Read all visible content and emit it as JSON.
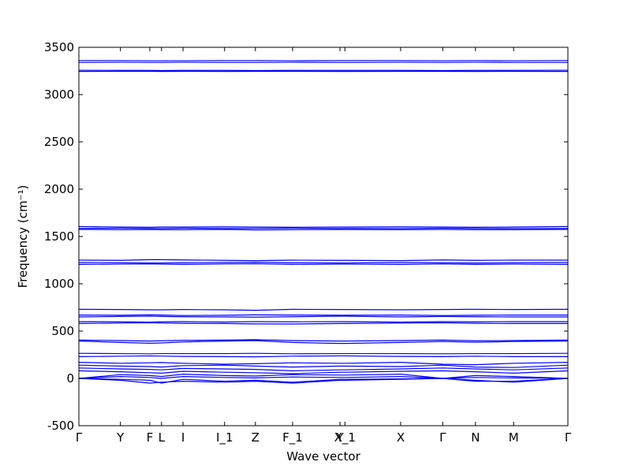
{
  "chart_data": {
    "type": "line",
    "xlabel": "Wave vector",
    "ylabel": "Frequency (cm⁻¹)",
    "xlim": [
      0,
      1
    ],
    "xticks": [
      {
        "value": 0,
        "label": "Γ"
      },
      {
        "value": 0.085,
        "label": "Y"
      },
      {
        "value": 0.145,
        "label": "F"
      },
      {
        "value": 0.169,
        "label": "L"
      },
      {
        "value": 0.213,
        "label": "I"
      },
      {
        "value": 0.298,
        "label": "I_1"
      },
      {
        "value": 0.361,
        "label": "Z"
      },
      {
        "value": 0.437,
        "label": "F_1"
      },
      {
        "value": 0.534,
        "label": "Y"
      },
      {
        "value": 0.544,
        "label": "X_1"
      },
      {
        "value": 0.658,
        "label": "X"
      },
      {
        "value": 0.744,
        "label": "Γ"
      },
      {
        "value": 0.811,
        "label": "N"
      },
      {
        "value": 0.889,
        "label": "M"
      },
      {
        "value": 1,
        "label": "Γ"
      }
    ],
    "ylim": [
      -500,
      3500
    ],
    "yticks": [
      -500,
      0,
      500,
      1000,
      1500,
      2000,
      2500,
      3000,
      3500
    ],
    "x": [
      0,
      0.085,
      0.145,
      0.169,
      0.213,
      0.298,
      0.361,
      0.437,
      0.534,
      0.544,
      0.658,
      0.744,
      0.811,
      0.889,
      1
    ],
    "series": [
      {
        "color": "#0000ff",
        "values": [
          3360,
          3360,
          3358,
          3358,
          3358,
          3360,
          3360,
          3358,
          3360,
          3360,
          3360,
          3358,
          3360,
          3358,
          3360
        ]
      },
      {
        "color": "#0000ff",
        "values": [
          3340,
          3342,
          3340,
          3340,
          3342,
          3340,
          3340,
          3342,
          3340,
          3340,
          3342,
          3340,
          3342,
          3340,
          3340
        ]
      },
      {
        "color": "#0000ff",
        "values": [
          3258,
          3256,
          3256,
          3254,
          3256,
          3256,
          3254,
          3256,
          3256,
          3256,
          3256,
          3254,
          3256,
          3256,
          3258
        ]
      },
      {
        "color": "#0000ff",
        "values": [
          3245,
          3246,
          3246,
          3245,
          3246,
          3245,
          3246,
          3246,
          3245,
          3245,
          3246,
          3246,
          3245,
          3246,
          3245
        ]
      },
      {
        "color": "#0000ff",
        "values": [
          1605,
          1600,
          1598,
          1600,
          1600,
          1602,
          1600,
          1598,
          1600,
          1600,
          1602,
          1600,
          1598,
          1600,
          1605
        ]
      },
      {
        "color": "#0000ff",
        "values": [
          1585,
          1588,
          1586,
          1585,
          1588,
          1585,
          1586,
          1588,
          1585,
          1586,
          1585,
          1588,
          1586,
          1585,
          1585
        ]
      },
      {
        "color": "#0000ff",
        "values": [
          1575,
          1572,
          1574,
          1572,
          1572,
          1575,
          1570,
          1572,
          1574,
          1574,
          1572,
          1575,
          1572,
          1572,
          1575
        ]
      },
      {
        "color": "#0000ff",
        "values": [
          1250,
          1248,
          1255,
          1255,
          1252,
          1248,
          1245,
          1250,
          1248,
          1248,
          1245,
          1252,
          1248,
          1250,
          1250
        ]
      },
      {
        "color": "#0000ff",
        "values": [
          1225,
          1222,
          1220,
          1220,
          1222,
          1225,
          1228,
          1222,
          1220,
          1220,
          1225,
          1222,
          1220,
          1222,
          1225
        ]
      },
      {
        "color": "#0000ff",
        "values": [
          1205,
          1208,
          1210,
          1208,
          1205,
          1210,
          1212,
          1205,
          1208,
          1208,
          1205,
          1210,
          1205,
          1208,
          1205
        ]
      },
      {
        "color": "#0000ff",
        "values": [
          730,
          728,
          725,
          725,
          728,
          725,
          720,
          730,
          728,
          728,
          725,
          728,
          730,
          728,
          730
        ]
      },
      {
        "color": "#0000ff",
        "values": [
          670,
          668,
          672,
          670,
          665,
          668,
          672,
          670,
          668,
          668,
          670,
          665,
          668,
          670,
          670
        ]
      },
      {
        "color": "#0000ff",
        "values": [
          650,
          655,
          658,
          655,
          652,
          650,
          648,
          652,
          658,
          658,
          650,
          655,
          652,
          650,
          650
        ]
      },
      {
        "color": "#0000ff",
        "values": [
          600,
          598,
          595,
          598,
          600,
          596,
          600,
          598,
          600,
          600,
          595,
          600,
          598,
          600,
          600
        ]
      },
      {
        "color": "#0000ff",
        "values": [
          580,
          585,
          588,
          585,
          582,
          580,
          576,
          575,
          580,
          580,
          585,
          588,
          582,
          580,
          580
        ]
      },
      {
        "color": "#0000ff",
        "values": [
          405,
          400,
          395,
          398,
          402,
          405,
          410,
          400,
          395,
          395,
          400,
          405,
          398,
          400,
          405
        ]
      },
      {
        "color": "#0000ff",
        "values": [
          395,
          380,
          372,
          375,
          385,
          395,
          400,
          380,
          370,
          370,
          380,
          390,
          382,
          390,
          395
        ]
      },
      {
        "color": "#0000ff",
        "values": [
          265,
          262,
          260,
          262,
          262,
          262,
          265,
          260,
          262,
          262,
          262,
          260,
          262,
          262,
          265
        ]
      },
      {
        "color": "#0000ff",
        "values": [
          230,
          235,
          238,
          236,
          232,
          230,
          228,
          235,
          238,
          238,
          232,
          230,
          235,
          230,
          230
        ]
      },
      {
        "color": "#0000ff",
        "values": [
          170,
          160,
          165,
          168,
          160,
          150,
          155,
          165,
          160,
          160,
          170,
          150,
          145,
          160,
          170
        ]
      },
      {
        "color": "#0000ff",
        "values": [
          140,
          130,
          125,
          120,
          135,
          140,
          130,
          120,
          130,
          130,
          125,
          140,
          120,
          115,
          140
        ]
      },
      {
        "color": "#0000ff",
        "values": [
          110,
          100,
          95,
          90,
          105,
          100,
          95,
          80,
          90,
          90,
          100,
          110,
          100,
          90,
          110
        ]
      },
      {
        "color": "#0000ff",
        "values": [
          80,
          70,
          60,
          55,
          75,
          65,
          60,
          50,
          65,
          65,
          75,
          80,
          70,
          55,
          80
        ]
      },
      {
        "color": "#0000ff",
        "values": [
          0,
          40,
          30,
          20,
          45,
          30,
          25,
          40,
          35,
          35,
          45,
          0,
          30,
          20,
          0
        ]
      },
      {
        "color": "#0000ff",
        "values": [
          0,
          -20,
          -50,
          -40,
          -30,
          -40,
          -30,
          -50,
          -20,
          -20,
          -10,
          0,
          -20,
          -40,
          0
        ]
      },
      {
        "color": "#0000ff",
        "values": [
          0,
          -10,
          -20,
          -50,
          -10,
          -30,
          -20,
          -40,
          -10,
          -10,
          -5,
          0,
          -30,
          -30,
          0
        ]
      },
      {
        "color": "#0000ff",
        "values": [
          0,
          20,
          10,
          0,
          20,
          10,
          5,
          15,
          10,
          10,
          20,
          0,
          10,
          5,
          0
        ]
      }
    ]
  }
}
